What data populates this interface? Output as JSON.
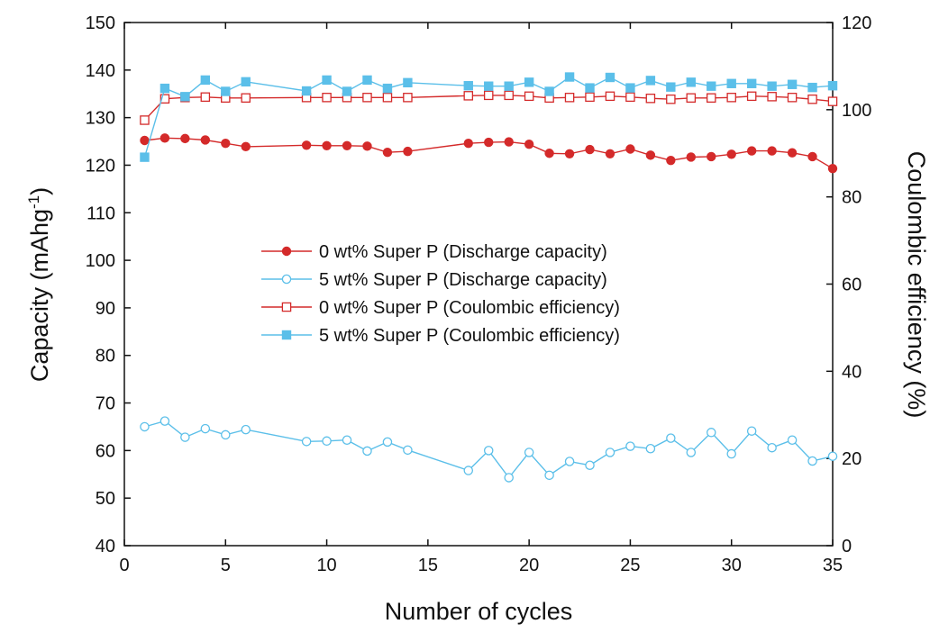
{
  "chart_data": {
    "type": "line",
    "title": "",
    "xlabel": "Number of cycles",
    "ylabel_left": "Capacity (mAhg",
    "ylabel_left_sup": "-1",
    "ylabel_left_close": ")",
    "ylabel_right": "Coulombic efficiency (%)",
    "xlim": [
      0,
      35
    ],
    "ylim_left": [
      40,
      150
    ],
    "ylim_right": [
      0,
      120
    ],
    "x_ticks": [
      0,
      5,
      10,
      15,
      20,
      25,
      30,
      35
    ],
    "y_ticks_left": [
      40,
      50,
      60,
      70,
      80,
      90,
      100,
      110,
      120,
      130,
      140,
      150
    ],
    "y_ticks_right": [
      0,
      20,
      40,
      60,
      80,
      100,
      120
    ],
    "grid": false,
    "legend_position": "center-left",
    "colors": {
      "red": "#d42a2a",
      "blue": "#5bbfe9"
    },
    "series": [
      {
        "name": "0 wt% Super P (Discharge capacity)",
        "axis": "left",
        "color": "#d42a2a",
        "marker": "circle-filled",
        "x": [
          1,
          2,
          3,
          4,
          5,
          6,
          9,
          10,
          11,
          12,
          13,
          14,
          17,
          18,
          19,
          20,
          21,
          22,
          23,
          24,
          25,
          26,
          27,
          28,
          29,
          30,
          31,
          32,
          33,
          34,
          35
        ],
        "y": [
          125.2,
          125.7,
          125.6,
          125.3,
          124.6,
          123.9,
          124.2,
          124.1,
          124.1,
          124.0,
          122.7,
          122.9,
          124.6,
          124.8,
          124.9,
          124.4,
          122.5,
          122.4,
          123.3,
          122.4,
          123.4,
          122.1,
          121.0,
          121.7,
          121.8,
          122.3,
          123.0,
          123.0,
          122.6,
          121.8,
          119.3
        ]
      },
      {
        "name": "5 wt% Super P (Discharge capacity)",
        "axis": "left",
        "color": "#5bbfe9",
        "marker": "circle-open",
        "x": [
          1,
          2,
          3,
          4,
          5,
          6,
          9,
          10,
          11,
          12,
          13,
          14,
          17,
          18,
          19,
          20,
          21,
          22,
          23,
          24,
          25,
          26,
          27,
          28,
          29,
          30,
          31,
          32,
          33,
          34,
          35
        ],
        "y": [
          65.0,
          66.2,
          62.8,
          64.6,
          63.3,
          64.4,
          61.9,
          62.0,
          62.2,
          59.9,
          61.8,
          60.1,
          55.8,
          60.0,
          54.3,
          59.6,
          54.8,
          57.7,
          56.9,
          59.6,
          60.9,
          60.4,
          62.6,
          59.6,
          63.8,
          59.3,
          64.1,
          60.6,
          62.2,
          57.8,
          58.8
        ]
      },
      {
        "name": "0 wt% Super P (Coulombic efficiency)",
        "axis": "right",
        "color": "#d42a2a",
        "marker": "square-open",
        "x": [
          1,
          2,
          3,
          4,
          5,
          6,
          9,
          10,
          11,
          12,
          13,
          14,
          17,
          18,
          19,
          20,
          21,
          22,
          23,
          24,
          25,
          26,
          27,
          28,
          29,
          30,
          31,
          32,
          33,
          34,
          35
        ],
        "y": [
          97.6,
          102.5,
          102.8,
          102.9,
          102.7,
          102.7,
          102.8,
          102.8,
          102.8,
          102.8,
          102.8,
          102.8,
          103.2,
          103.3,
          103.3,
          103.1,
          102.7,
          102.8,
          102.9,
          103.1,
          102.9,
          102.6,
          102.4,
          102.7,
          102.7,
          102.8,
          103.1,
          103.0,
          102.8,
          102.4,
          101.9
        ]
      },
      {
        "name": "5 wt% Super P (Coulombic efficiency)",
        "axis": "right",
        "color": "#5bbfe9",
        "marker": "square-filled",
        "x": [
          1,
          2,
          3,
          4,
          5,
          6,
          9,
          10,
          11,
          12,
          13,
          14,
          17,
          18,
          19,
          20,
          21,
          22,
          23,
          24,
          25,
          26,
          27,
          28,
          29,
          30,
          31,
          32,
          33,
          34,
          35
        ],
        "y": [
          89.1,
          104.9,
          103.0,
          106.8,
          104.2,
          106.4,
          104.3,
          106.8,
          104.2,
          106.8,
          104.9,
          106.2,
          105.5,
          105.4,
          105.4,
          106.3,
          104.2,
          107.5,
          105.0,
          107.4,
          105.0,
          106.7,
          105.2,
          106.3,
          105.4,
          106.0,
          106.0,
          105.4,
          105.8,
          105.1,
          105.5
        ]
      }
    ]
  }
}
